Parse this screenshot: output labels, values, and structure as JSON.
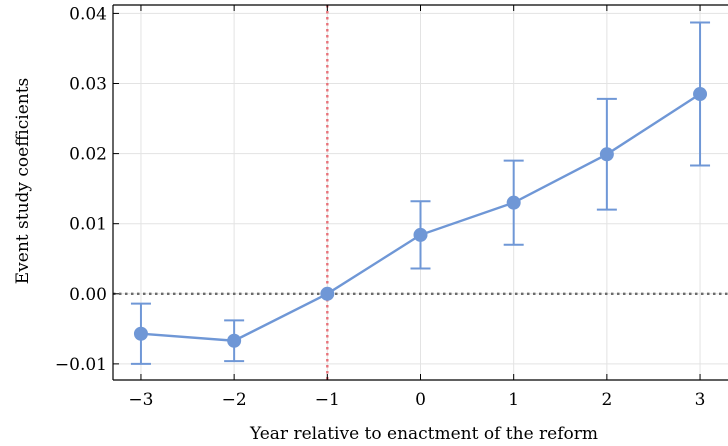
{
  "chart_data": {
    "type": "line",
    "title": "",
    "xlabel": "Year relative to enactment of the reform",
    "ylabel": "Event study coefficients",
    "x": [
      -3,
      -2,
      -1,
      0,
      1,
      2,
      3
    ],
    "series": [
      {
        "values": [
          -0.0057,
          -0.0067,
          0.0,
          0.0084,
          0.013,
          0.0199,
          0.0285
        ],
        "ci_low": [
          -0.01,
          -0.0096,
          0.0,
          0.0036,
          0.007,
          0.012,
          0.0183
        ],
        "ci_high": [
          -0.0014,
          -0.0038,
          0.0,
          0.0132,
          0.019,
          0.0278,
          0.0387
        ]
      }
    ],
    "x_ticks": [
      -3,
      -2,
      -1,
      0,
      1,
      2,
      3
    ],
    "x_tick_labels": [
      "−3",
      "−2",
      "−1",
      "0",
      "1",
      "2",
      "3"
    ],
    "y_ticks": [
      -0.01,
      0.0,
      0.01,
      0.02,
      0.03,
      0.04
    ],
    "y_tick_labels": [
      "−0.01",
      "0.00",
      "0.01",
      "0.02",
      "0.03",
      "0.04"
    ],
    "xlim": [
      -3.3,
      3.3
    ],
    "ylim": [
      -0.0123,
      0.0412
    ],
    "grid": true,
    "reference_lines": {
      "vertical_x": -1,
      "horizontal_y": 0
    },
    "colors": {
      "series": "#6f97d6",
      "vertical_reference": "#e8737a",
      "horizontal_reference": "#6b6b6b",
      "grid": "#e3e3e3"
    }
  }
}
